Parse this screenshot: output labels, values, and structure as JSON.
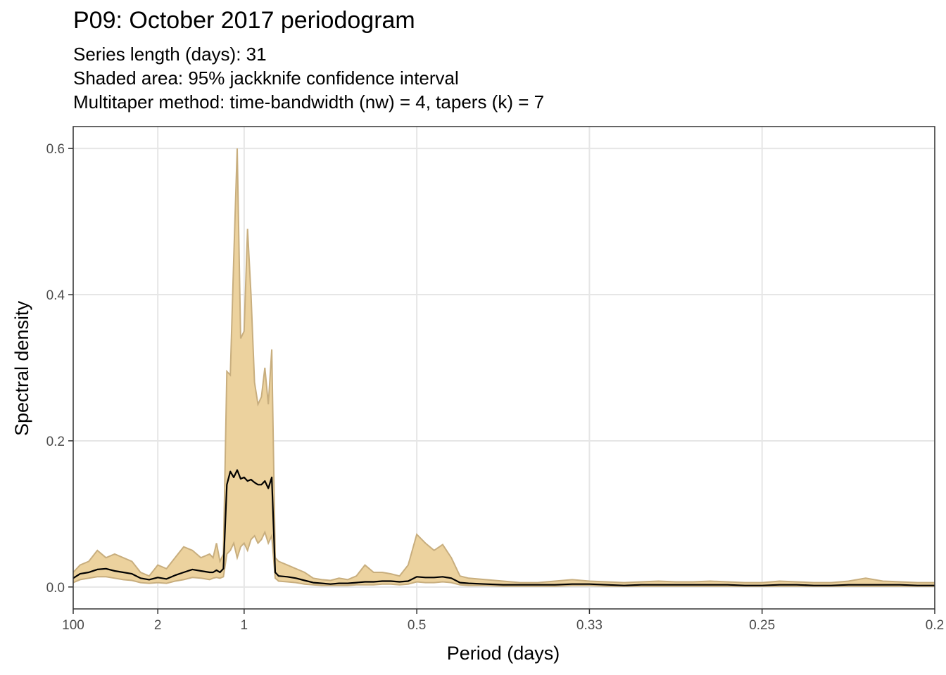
{
  "title": "P09: October 2017 periodogram",
  "subtitle_lines": [
    "Series length (days): 31",
    "Shaded area: 95% jackknife confidence interval",
    "Multitaper method: time-bandwidth (nw) = 4, tapers (k) = 7"
  ],
  "colors": {
    "ribbon_fill": "#ecd29e",
    "ribbon_edge": "#c8ae7e",
    "line": "#000000",
    "grid": "#e6e6e6",
    "panel_border": "#333333",
    "tick_text": "#4d4d4d"
  },
  "chart_data": {
    "type": "area",
    "xlabel": "Period (days)",
    "ylabel": "Spectral density",
    "x_quantity": "frequency (cycles per day); tick labels show period = 1/frequency",
    "xlim": [
      0.01,
      5
    ],
    "ylim": [
      -0.03,
      0.63
    ],
    "grid": true,
    "legend": "none",
    "x_ticks": [
      {
        "value": 0.01,
        "label": "100"
      },
      {
        "value": 0.5,
        "label": "2"
      },
      {
        "value": 1,
        "label": "1"
      },
      {
        "value": 2,
        "label": "0.5"
      },
      {
        "value": 3,
        "label": "0.33"
      },
      {
        "value": 4,
        "label": "0.25"
      },
      {
        "value": 5,
        "label": "0.2"
      }
    ],
    "y_ticks": [
      {
        "value": 0.0,
        "label": "0.0"
      },
      {
        "value": 0.2,
        "label": "0.2"
      },
      {
        "value": 0.4,
        "label": "0.4"
      },
      {
        "value": 0.6,
        "label": "0.6"
      }
    ],
    "series": [
      {
        "role": "spectrum",
        "x": [
          0.01,
          0.05,
          0.1,
          0.15,
          0.2,
          0.25,
          0.3,
          0.35,
          0.4,
          0.45,
          0.5,
          0.55,
          0.6,
          0.65,
          0.7,
          0.75,
          0.8,
          0.82,
          0.84,
          0.86,
          0.88,
          0.9,
          0.92,
          0.94,
          0.96,
          0.98,
          1.0,
          1.02,
          1.04,
          1.06,
          1.08,
          1.1,
          1.12,
          1.14,
          1.16,
          1.18,
          1.2,
          1.25,
          1.3,
          1.35,
          1.4,
          1.45,
          1.5,
          1.55,
          1.6,
          1.65,
          1.7,
          1.75,
          1.8,
          1.85,
          1.9,
          1.95,
          2.0,
          2.05,
          2.1,
          2.15,
          2.2,
          2.25,
          2.3,
          2.4,
          2.5,
          2.6,
          2.7,
          2.8,
          2.9,
          3.0,
          3.1,
          3.2,
          3.3,
          3.4,
          3.5,
          3.6,
          3.7,
          3.8,
          3.9,
          4.0,
          4.1,
          4.2,
          4.3,
          4.4,
          4.5,
          4.6,
          4.7,
          4.8,
          4.9,
          5.0
        ],
        "y": [
          0.012,
          0.018,
          0.02,
          0.024,
          0.025,
          0.022,
          0.02,
          0.018,
          0.012,
          0.01,
          0.013,
          0.011,
          0.016,
          0.02,
          0.024,
          0.022,
          0.02,
          0.02,
          0.023,
          0.02,
          0.025,
          0.14,
          0.158,
          0.15,
          0.16,
          0.148,
          0.15,
          0.145,
          0.147,
          0.143,
          0.14,
          0.14,
          0.145,
          0.135,
          0.15,
          0.02,
          0.015,
          0.014,
          0.012,
          0.009,
          0.006,
          0.005,
          0.004,
          0.005,
          0.005,
          0.006,
          0.007,
          0.007,
          0.008,
          0.008,
          0.007,
          0.008,
          0.014,
          0.013,
          0.013,
          0.014,
          0.012,
          0.006,
          0.005,
          0.004,
          0.003,
          0.003,
          0.003,
          0.003,
          0.004,
          0.004,
          0.003,
          0.002,
          0.003,
          0.003,
          0.003,
          0.003,
          0.003,
          0.003,
          0.002,
          0.002,
          0.003,
          0.003,
          0.002,
          0.002,
          0.003,
          0.003,
          0.003,
          0.003,
          0.002,
          0.002
        ]
      },
      {
        "role": "ci_upper",
        "x": [
          0.01,
          0.05,
          0.1,
          0.15,
          0.2,
          0.25,
          0.3,
          0.35,
          0.4,
          0.45,
          0.5,
          0.55,
          0.6,
          0.65,
          0.7,
          0.75,
          0.8,
          0.82,
          0.84,
          0.86,
          0.88,
          0.9,
          0.92,
          0.94,
          0.96,
          0.98,
          1.0,
          1.02,
          1.04,
          1.06,
          1.08,
          1.1,
          1.12,
          1.14,
          1.16,
          1.18,
          1.2,
          1.25,
          1.3,
          1.35,
          1.4,
          1.45,
          1.5,
          1.55,
          1.6,
          1.65,
          1.7,
          1.75,
          1.8,
          1.85,
          1.9,
          1.95,
          2.0,
          2.05,
          2.1,
          2.15,
          2.2,
          2.25,
          2.3,
          2.4,
          2.5,
          2.6,
          2.7,
          2.8,
          2.9,
          3.0,
          3.1,
          3.2,
          3.3,
          3.4,
          3.5,
          3.6,
          3.7,
          3.8,
          3.9,
          4.0,
          4.1,
          4.2,
          4.3,
          4.4,
          4.5,
          4.6,
          4.7,
          4.8,
          4.9,
          5.0
        ],
        "y": [
          0.02,
          0.03,
          0.035,
          0.05,
          0.04,
          0.045,
          0.04,
          0.035,
          0.02,
          0.015,
          0.03,
          0.025,
          0.04,
          0.055,
          0.05,
          0.04,
          0.045,
          0.04,
          0.06,
          0.035,
          0.045,
          0.295,
          0.29,
          0.45,
          0.6,
          0.34,
          0.35,
          0.49,
          0.4,
          0.28,
          0.25,
          0.26,
          0.3,
          0.25,
          0.325,
          0.04,
          0.035,
          0.03,
          0.025,
          0.02,
          0.012,
          0.01,
          0.009,
          0.012,
          0.01,
          0.015,
          0.03,
          0.02,
          0.02,
          0.018,
          0.015,
          0.03,
          0.072,
          0.06,
          0.05,
          0.058,
          0.04,
          0.015,
          0.012,
          0.01,
          0.008,
          0.006,
          0.006,
          0.008,
          0.01,
          0.008,
          0.007,
          0.006,
          0.007,
          0.008,
          0.007,
          0.007,
          0.008,
          0.007,
          0.006,
          0.006,
          0.008,
          0.007,
          0.006,
          0.006,
          0.008,
          0.012,
          0.008,
          0.007,
          0.006,
          0.006
        ]
      },
      {
        "role": "ci_lower",
        "x": [
          0.01,
          0.05,
          0.1,
          0.15,
          0.2,
          0.25,
          0.3,
          0.35,
          0.4,
          0.45,
          0.5,
          0.55,
          0.6,
          0.65,
          0.7,
          0.75,
          0.8,
          0.82,
          0.84,
          0.86,
          0.88,
          0.9,
          0.92,
          0.94,
          0.96,
          0.98,
          1.0,
          1.02,
          1.04,
          1.06,
          1.08,
          1.1,
          1.12,
          1.14,
          1.16,
          1.18,
          1.2,
          1.25,
          1.3,
          1.35,
          1.4,
          1.45,
          1.5,
          1.55,
          1.6,
          1.65,
          1.7,
          1.75,
          1.8,
          1.85,
          1.9,
          1.95,
          2.0,
          2.05,
          2.1,
          2.15,
          2.2,
          2.25,
          2.3,
          2.4,
          2.5,
          2.6,
          2.7,
          2.8,
          2.9,
          3.0,
          3.1,
          3.2,
          3.3,
          3.4,
          3.5,
          3.6,
          3.7,
          3.8,
          3.9,
          4.0,
          4.1,
          4.2,
          4.3,
          4.4,
          4.5,
          4.6,
          4.7,
          4.8,
          4.9,
          5.0
        ],
        "y": [
          0.006,
          0.01,
          0.012,
          0.014,
          0.014,
          0.012,
          0.01,
          0.009,
          0.006,
          0.005,
          0.006,
          0.005,
          0.008,
          0.01,
          0.013,
          0.012,
          0.01,
          0.012,
          0.013,
          0.012,
          0.014,
          0.045,
          0.05,
          0.06,
          0.04,
          0.055,
          0.06,
          0.05,
          0.065,
          0.07,
          0.06,
          0.065,
          0.075,
          0.06,
          0.07,
          0.012,
          0.008,
          0.007,
          0.006,
          0.004,
          0.003,
          0.002,
          0.002,
          0.002,
          0.002,
          0.003,
          0.003,
          0.003,
          0.004,
          0.004,
          0.003,
          0.004,
          0.007,
          0.006,
          0.006,
          0.007,
          0.006,
          0.003,
          0.002,
          0.002,
          0.001,
          0.001,
          0.001,
          0.001,
          0.002,
          0.002,
          0.001,
          0.001,
          0.001,
          0.001,
          0.001,
          0.001,
          0.001,
          0.001,
          0.001,
          0.001,
          0.001,
          0.001,
          0.001,
          0.001,
          0.001,
          0.001,
          0.001,
          0.001,
          0.001,
          0.001
        ]
      }
    ]
  }
}
